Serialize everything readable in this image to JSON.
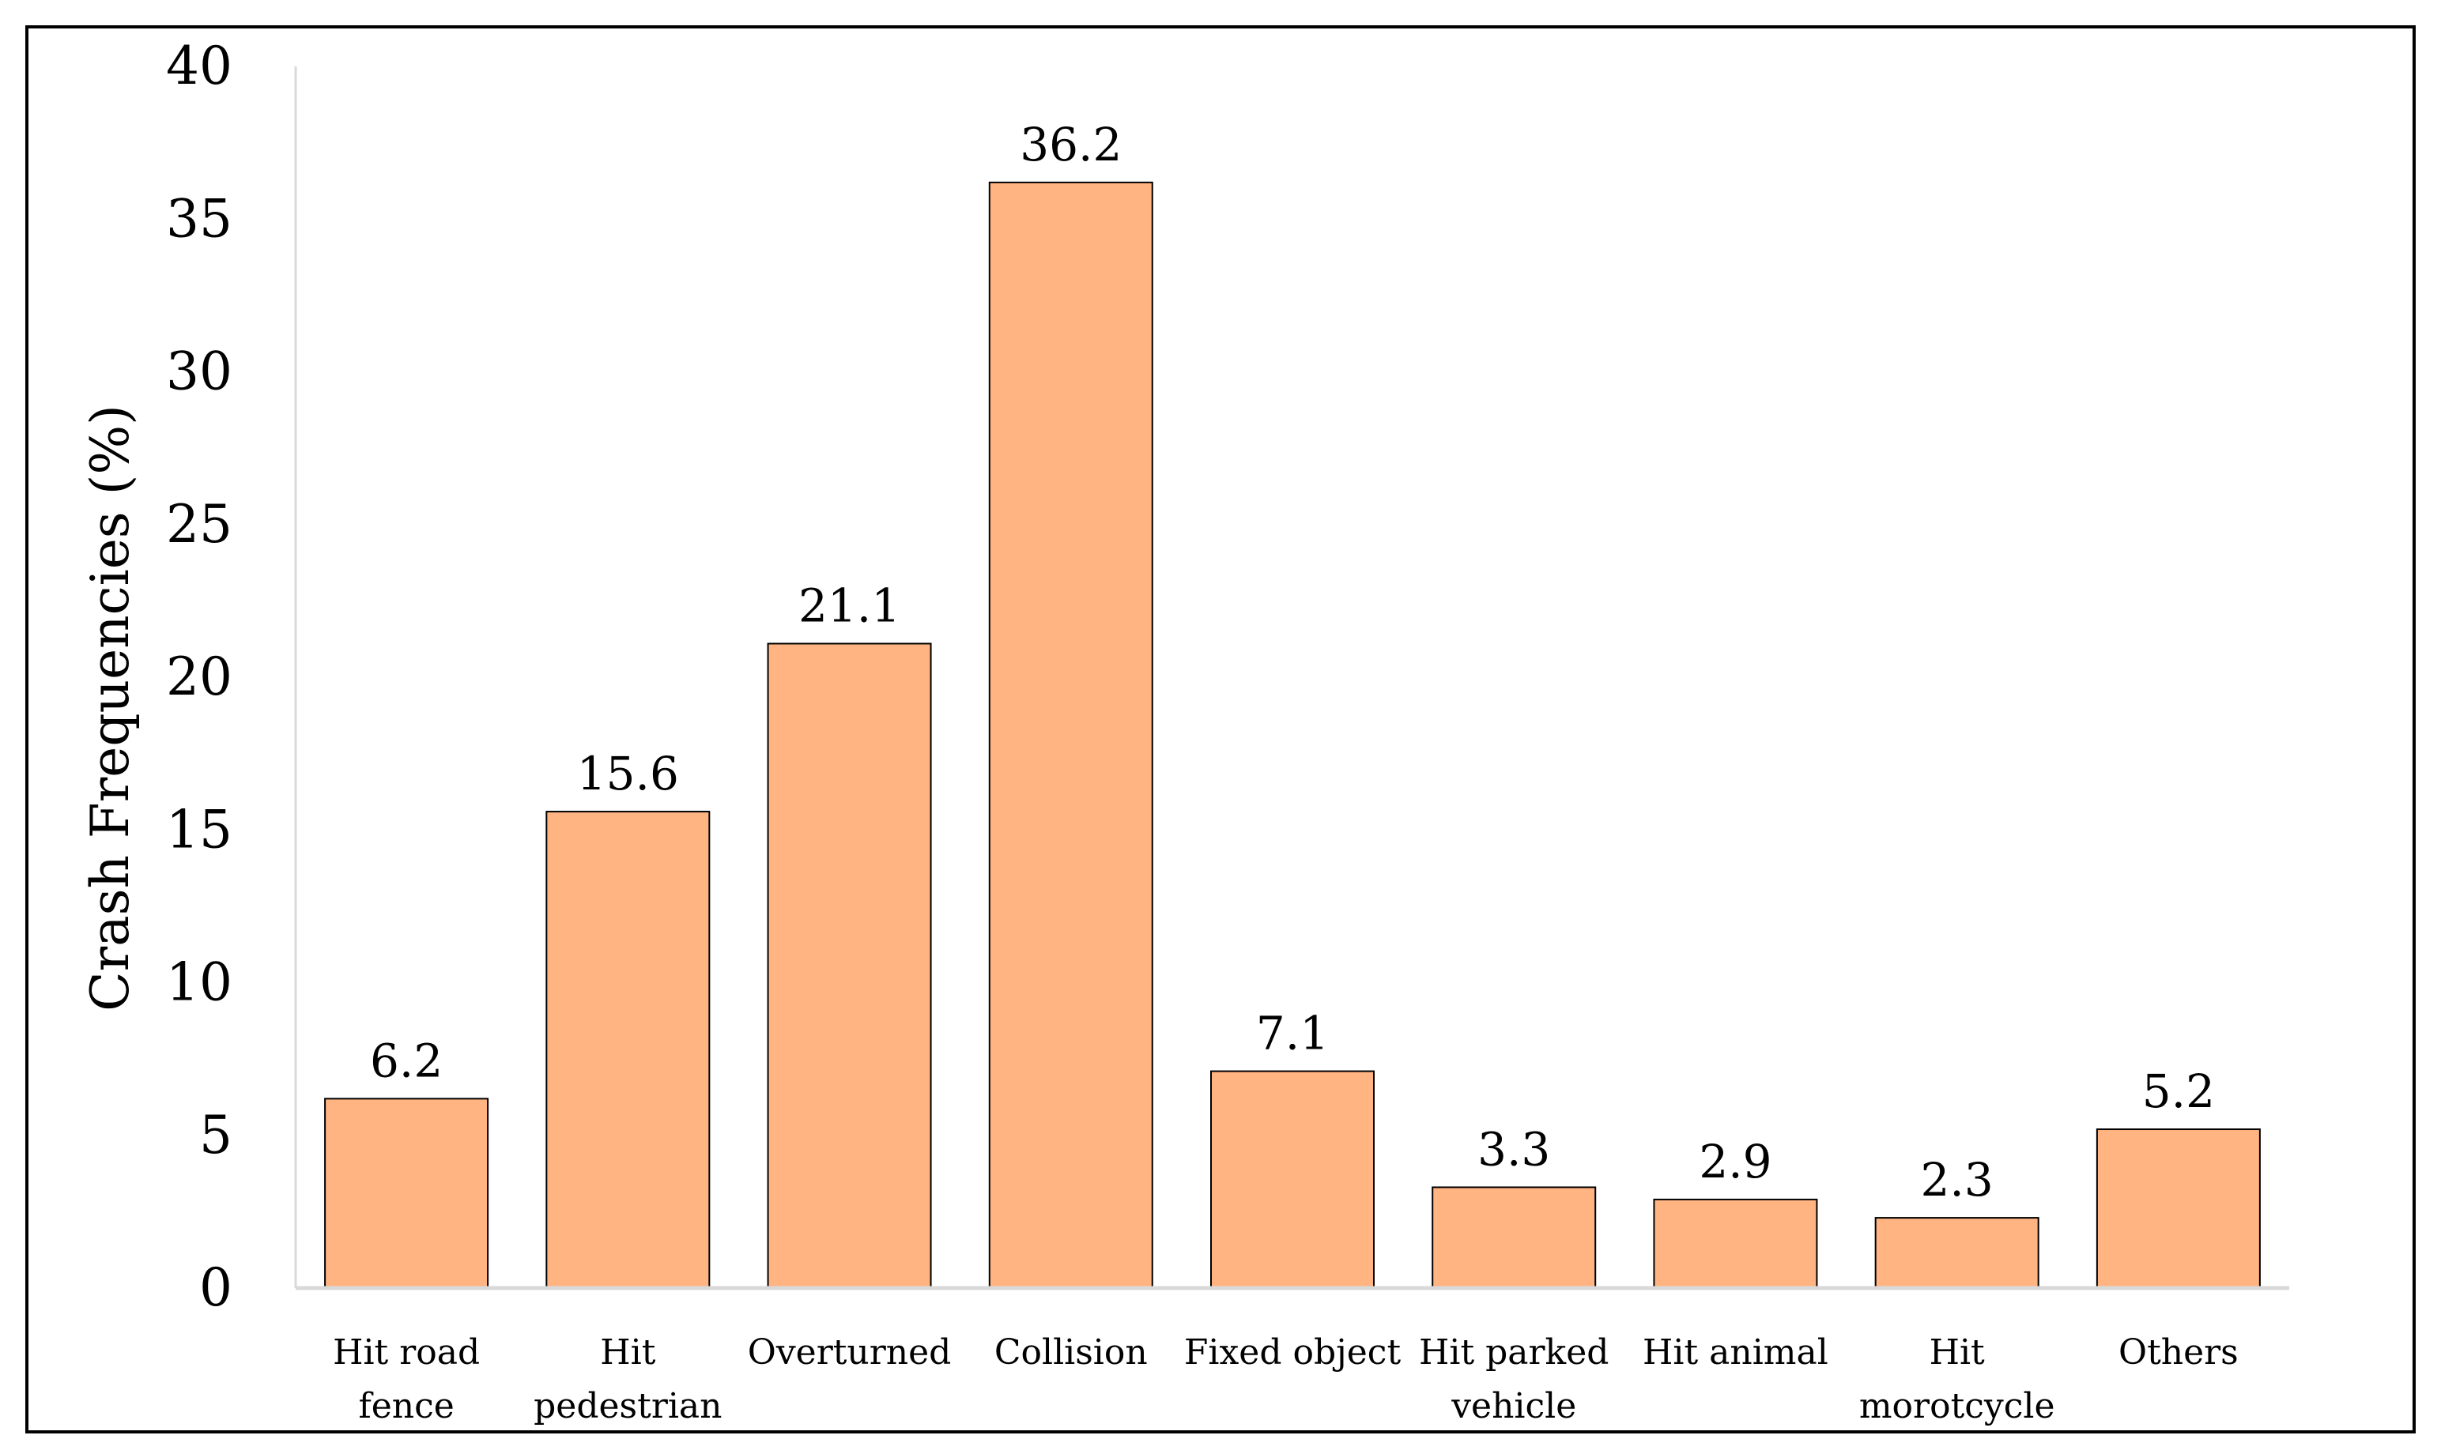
{
  "chart_data": {
    "type": "bar",
    "title": "",
    "xlabel": "",
    "ylabel": "Crash Frequencies (%)",
    "categories": [
      "Hit road fence",
      "Hit pedestrian",
      "Overturned",
      "Collision",
      "Fixed object",
      "Hit parked vehicle",
      "Hit animal",
      "Hit morotcycle",
      "Others"
    ],
    "category_lines": [
      [
        "Hit road",
        "fence"
      ],
      [
        "Hit",
        "pedestrian"
      ],
      [
        "Overturned"
      ],
      [
        "Collision"
      ],
      [
        "Fixed object"
      ],
      [
        "Hit parked",
        "vehicle"
      ],
      [
        "Hit animal"
      ],
      [
        "Hit",
        "morotcycle"
      ],
      [
        "Others"
      ]
    ],
    "values": [
      6.2,
      15.6,
      21.1,
      36.2,
      7.1,
      3.3,
      2.9,
      2.3,
      5.2
    ],
    "data_labels": [
      "6.2",
      "15.6",
      "21.1",
      "36.2",
      "7.1",
      "3.3",
      "2.9",
      "2.3",
      "5.2"
    ],
    "yticks": [
      0,
      5,
      10,
      15,
      20,
      25,
      30,
      35,
      40
    ],
    "ylim": [
      0,
      40
    ],
    "grid": false,
    "legend": "none",
    "bar_color": "#FFB482",
    "bar_edge_color": "#000000",
    "axis_color": "#D9D9D9"
  }
}
